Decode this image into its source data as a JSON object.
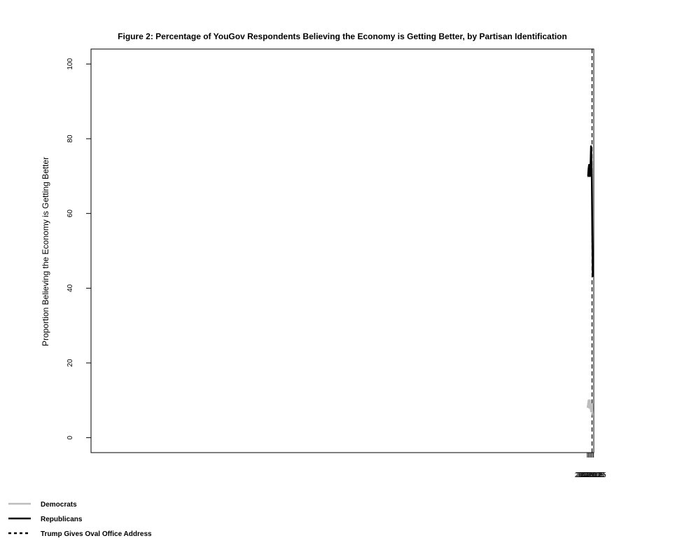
{
  "chart_data": {
    "type": "line",
    "title": "Figure 2: Percentage of YouGov Respondents Believing the Economy is Getting Better, by Partisan Identification",
    "xlabel": "",
    "ylabel": "Proportion Believing the Economy is Getting Better",
    "xlim": [
      1999.99,
      2020.26
    ],
    "ylim": [
      -4,
      104
    ],
    "x_ticks": [
      2020.0,
      2020.05,
      2020.1,
      2020.15,
      2020.2,
      2020.25
    ],
    "x_tick_labels": [
      "2020.00",
      "2020.05",
      "2020.10",
      "2020.15",
      "2020.20",
      "2020.25"
    ],
    "y_ticks": [
      0,
      20,
      40,
      60,
      80,
      100
    ],
    "y_tick_labels": [
      "0",
      "20",
      "40",
      "60",
      "80",
      "100"
    ],
    "grid": false,
    "legend_position": "bottom-left",
    "series": [
      {
        "name": "Democrats",
        "color": "#bdbdbd",
        "style": "solid",
        "points": [
          [
            2020.01,
            8
          ],
          [
            2020.03,
            9
          ],
          [
            2020.05,
            10
          ],
          [
            2020.07,
            8
          ],
          [
            2020.09,
            8
          ],
          [
            2020.11,
            10
          ],
          [
            2020.13,
            8
          ],
          [
            2020.15,
            7
          ],
          [
            2020.16,
            7
          ],
          [
            2020.18,
            8
          ],
          [
            2020.2,
            9
          ],
          [
            2020.22,
            6
          ]
        ]
      },
      {
        "name": "Republicans",
        "color": "#000000",
        "style": "solid",
        "points": [
          [
            2020.01,
            70
          ],
          [
            2020.03,
            70
          ],
          [
            2020.05,
            72
          ],
          [
            2020.07,
            73
          ],
          [
            2020.09,
            70
          ],
          [
            2020.11,
            70
          ],
          [
            2020.13,
            73
          ],
          [
            2020.15,
            78
          ],
          [
            2020.16,
            76
          ],
          [
            2020.18,
            70
          ],
          [
            2020.2,
            55
          ],
          [
            2020.22,
            43
          ]
        ]
      }
    ],
    "vlines": [
      {
        "name": "Trump Gives Oval Office Address",
        "x": 2020.19,
        "color": "#000000",
        "style": "dashed"
      }
    ],
    "legend": [
      {
        "label": "Democrats",
        "color": "#bdbdbd",
        "style": "solid"
      },
      {
        "label": "Republicans",
        "color": "#000000",
        "style": "solid"
      },
      {
        "label": "Trump Gives Oval Office Address",
        "color": "#000000",
        "style": "dashed"
      }
    ]
  }
}
